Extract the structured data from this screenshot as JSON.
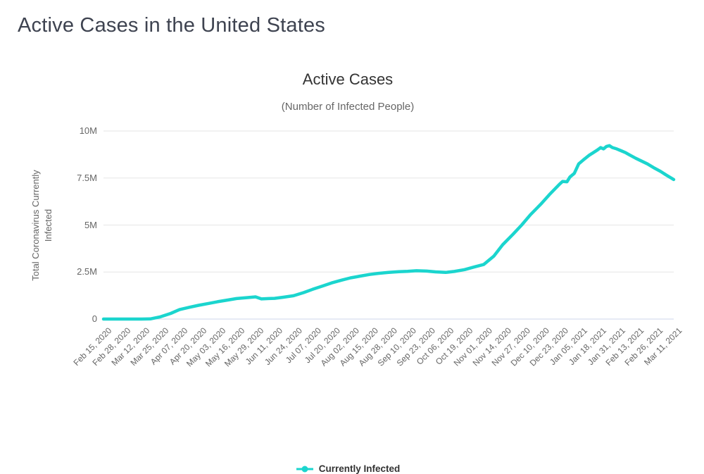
{
  "page": {
    "title": "Active Cases in the United States"
  },
  "chart": {
    "colors": {
      "line": "#1bd5ce",
      "grid": "#e6e6e6",
      "axis_line": "#ccd6eb",
      "title_text": "#333333",
      "muted_text": "#666666",
      "heading_text": "#3e4350"
    }
  },
  "chart_data": {
    "type": "line",
    "title": "Active Cases",
    "subtitle": "(Number of Infected People)",
    "ylabel": "Total Coronavirus Currently Infected",
    "xlabel": "",
    "grid": "horizontal",
    "legend_position": "bottom",
    "ylim": [
      0,
      10000000
    ],
    "ytick_values": [
      0,
      2500000,
      5000000,
      7500000,
      10000000
    ],
    "ytick_labels": [
      "0",
      "2.5M",
      "5M",
      "7.5M",
      "10M"
    ],
    "x_tick_days": [
      0,
      13,
      26,
      39,
      52,
      65,
      78,
      91,
      104,
      117,
      130,
      143,
      156,
      169,
      182,
      195,
      208,
      221,
      234,
      247,
      260,
      273,
      286,
      299,
      312,
      325,
      338,
      351,
      364,
      377,
      390
    ],
    "x_tick_labels": [
      "Feb 15, 2020",
      "Feb 28, 2020",
      "Mar 12, 2020",
      "Mar 25, 2020",
      "Apr 07, 2020",
      "Apr 20, 2020",
      "May 03, 2020",
      "May 16, 2020",
      "May 29, 2020",
      "Jun 11, 2020",
      "Jun 24, 2020",
      "Jul 07, 2020",
      "Jul 20, 2020",
      "Aug 02, 2020",
      "Aug 15, 2020",
      "Aug 28, 2020",
      "Sep 10, 2020",
      "Sep 23, 2020",
      "Oct 06, 2020",
      "Oct 19, 2020",
      "Nov 01, 2020",
      "Nov 14, 2020",
      "Nov 27, 2020",
      "Dec 10, 2020",
      "Dec 23, 2020",
      "Jan 05, 2021",
      "Jan 18, 2021",
      "Jan 31, 2021",
      "Feb 13, 2021",
      "Feb 26, 2021",
      "Mar 11, 2021"
    ],
    "x_unit": "days since Feb 15, 2020",
    "series": [
      {
        "name": "Currently Infected",
        "color": "#1bd5ce",
        "points": [
          [
            0,
            15
          ],
          [
            13,
            60
          ],
          [
            26,
            1600
          ],
          [
            32,
            8000
          ],
          [
            39,
            120000
          ],
          [
            46,
            300000
          ],
          [
            52,
            500000
          ],
          [
            59,
            630000
          ],
          [
            65,
            730000
          ],
          [
            72,
            830000
          ],
          [
            78,
            920000
          ],
          [
            85,
            1010000
          ],
          [
            91,
            1090000
          ],
          [
            98,
            1140000
          ],
          [
            104,
            1180000
          ],
          [
            108,
            1070000
          ],
          [
            113,
            1090000
          ],
          [
            117,
            1100000
          ],
          [
            123,
            1160000
          ],
          [
            130,
            1240000
          ],
          [
            137,
            1410000
          ],
          [
            143,
            1580000
          ],
          [
            150,
            1760000
          ],
          [
            156,
            1920000
          ],
          [
            163,
            2070000
          ],
          [
            169,
            2190000
          ],
          [
            176,
            2290000
          ],
          [
            182,
            2370000
          ],
          [
            188,
            2430000
          ],
          [
            195,
            2480000
          ],
          [
            202,
            2520000
          ],
          [
            208,
            2540000
          ],
          [
            214,
            2570000
          ],
          [
            221,
            2550000
          ],
          [
            227,
            2510000
          ],
          [
            234,
            2480000
          ],
          [
            240,
            2530000
          ],
          [
            247,
            2630000
          ],
          [
            254,
            2780000
          ],
          [
            260,
            2900000
          ],
          [
            267,
            3350000
          ],
          [
            273,
            3950000
          ],
          [
            280,
            4500000
          ],
          [
            286,
            5000000
          ],
          [
            292,
            5550000
          ],
          [
            299,
            6100000
          ],
          [
            305,
            6620000
          ],
          [
            312,
            7180000
          ],
          [
            314,
            7320000
          ],
          [
            317,
            7300000
          ],
          [
            319,
            7550000
          ],
          [
            322,
            7750000
          ],
          [
            325,
            8250000
          ],
          [
            328,
            8450000
          ],
          [
            332,
            8700000
          ],
          [
            335,
            8850000
          ],
          [
            338,
            9000000
          ],
          [
            340,
            9120000
          ],
          [
            342,
            9050000
          ],
          [
            344,
            9180000
          ],
          [
            346,
            9220000
          ],
          [
            348,
            9120000
          ],
          [
            351,
            9050000
          ],
          [
            354,
            8950000
          ],
          [
            357,
            8850000
          ],
          [
            360,
            8720000
          ],
          [
            364,
            8550000
          ],
          [
            368,
            8400000
          ],
          [
            372,
            8250000
          ],
          [
            377,
            8020000
          ],
          [
            381,
            7850000
          ],
          [
            385,
            7650000
          ],
          [
            390,
            7420000
          ]
        ]
      }
    ]
  }
}
